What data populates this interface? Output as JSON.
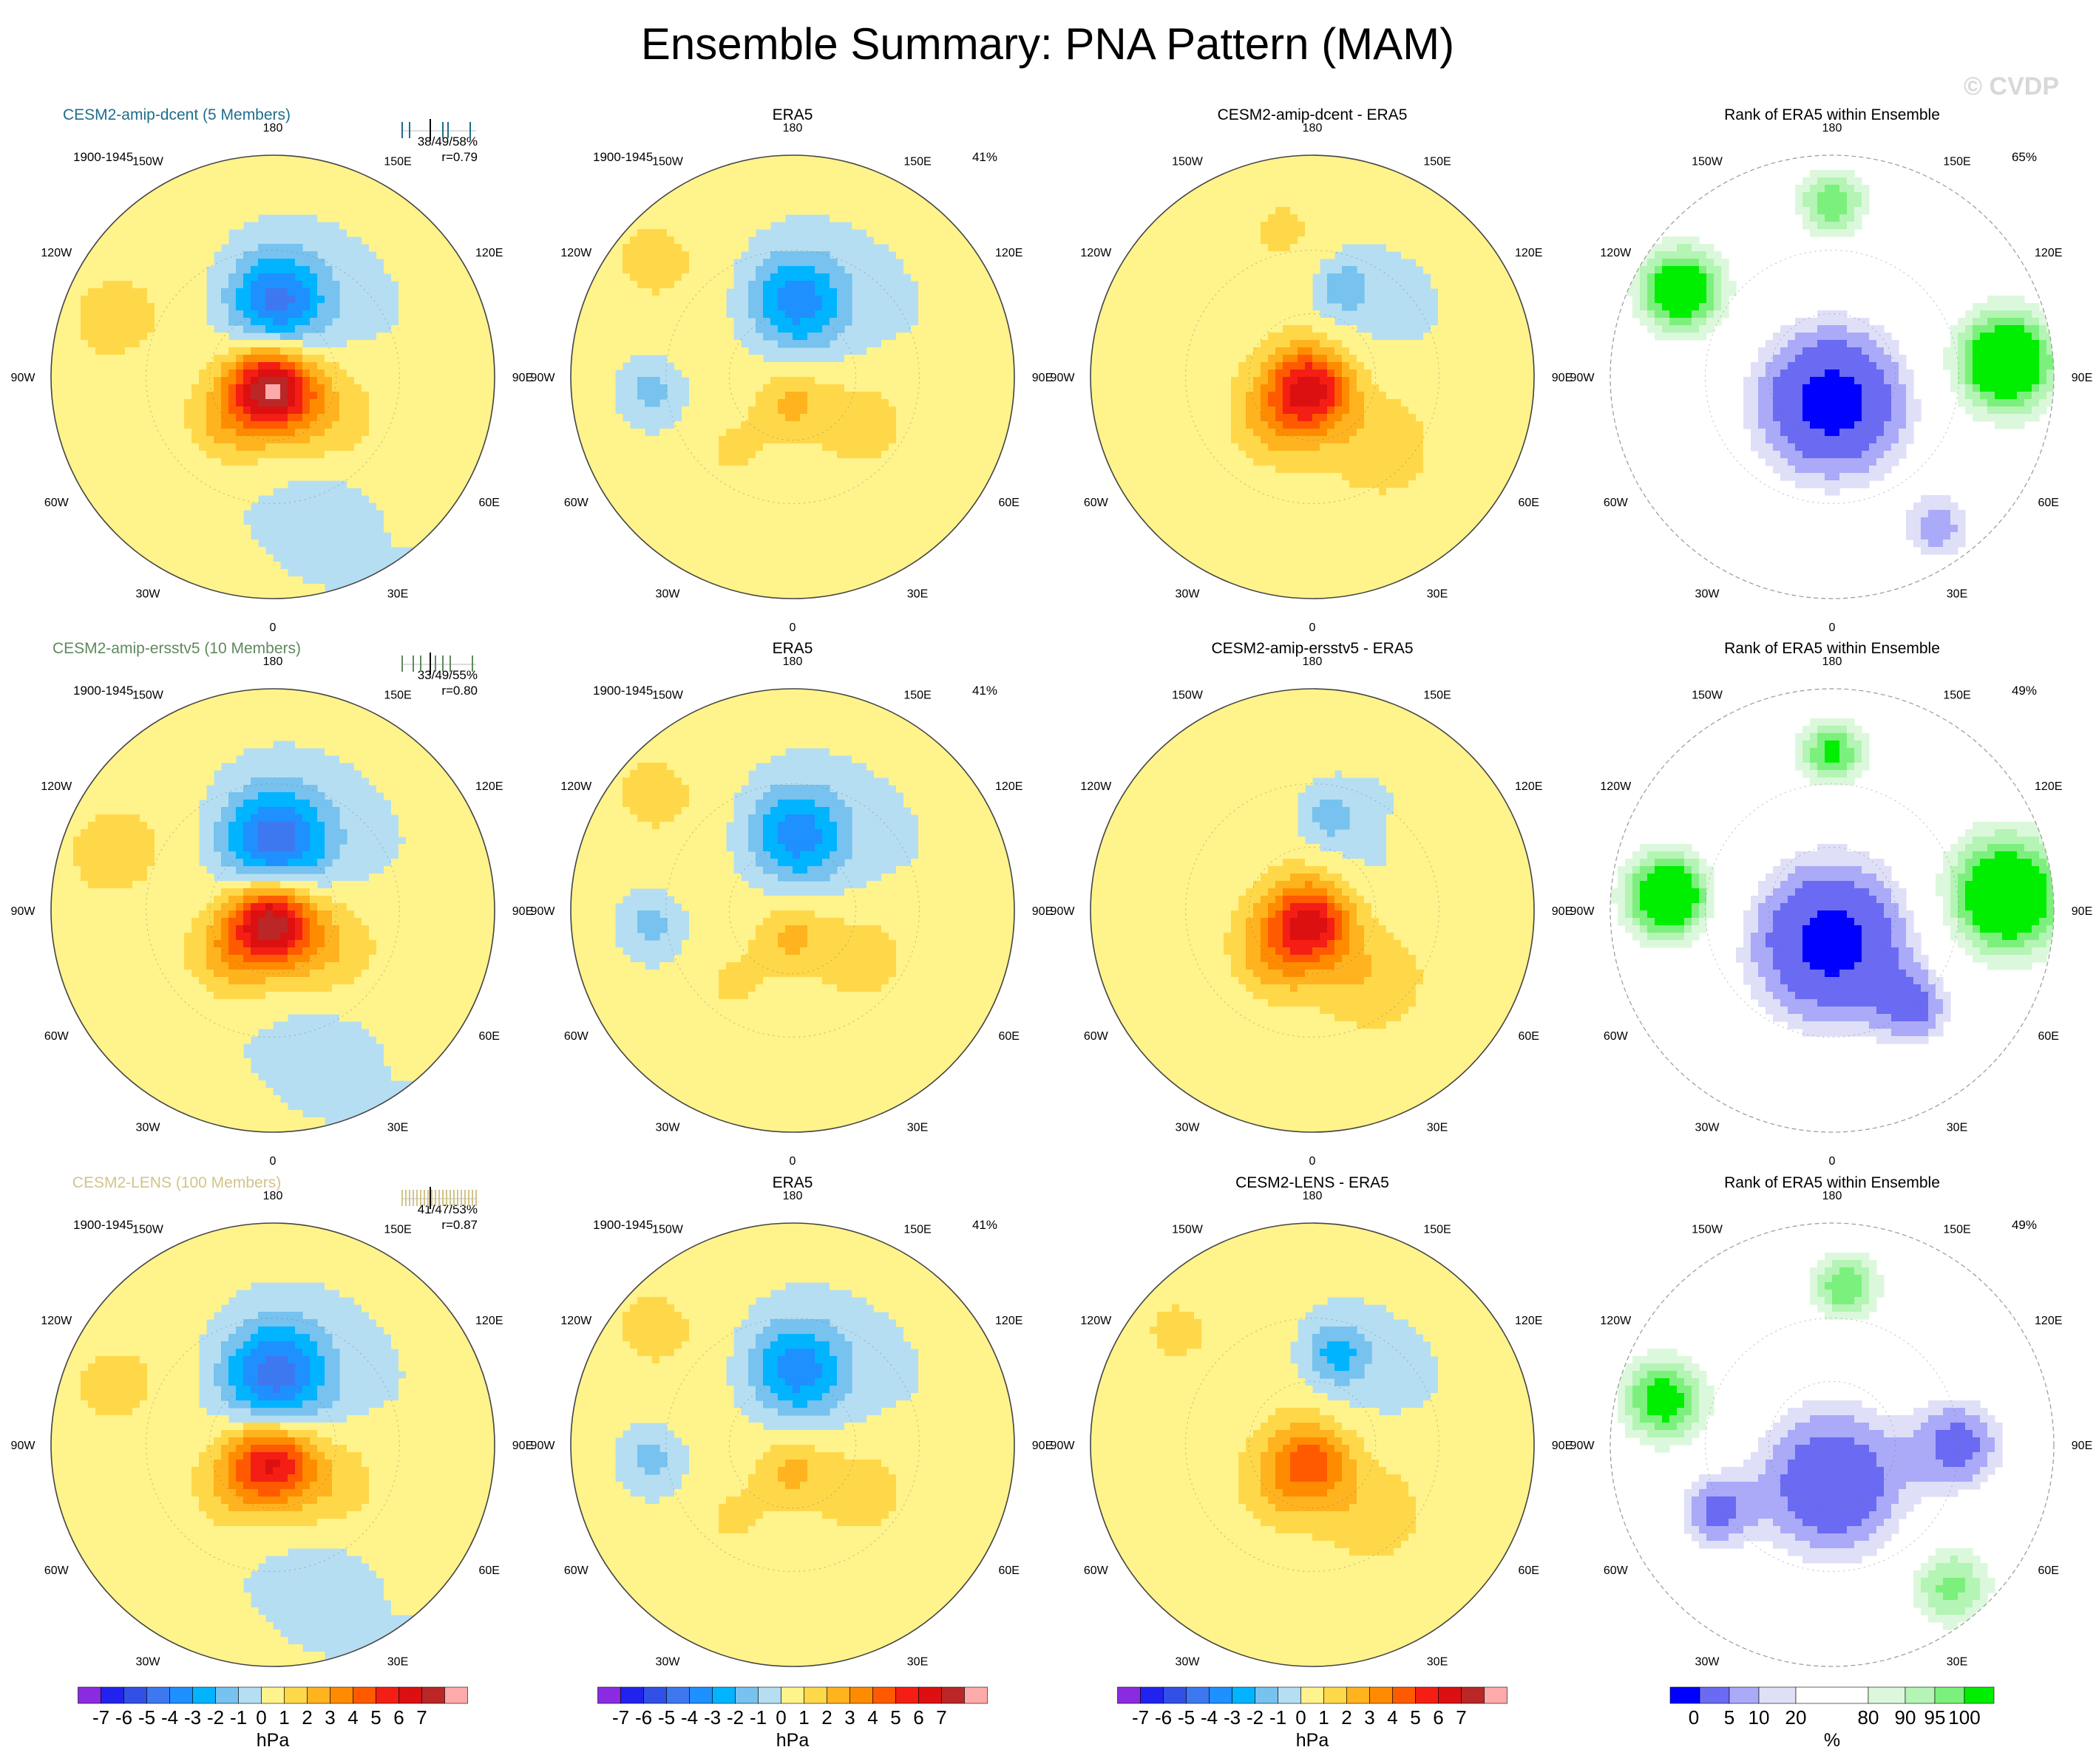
{
  "figure": {
    "title": "Ensemble Summary: PNA Pattern (MAM)",
    "watermark": "© CVDP"
  },
  "chart_data": {
    "type": "heatmap",
    "projection": "polar-stereographic (Northern Hemisphere)",
    "lon_labels": [
      "180",
      "150E",
      "120E",
      "90E",
      "60E",
      "30E",
      "0",
      "30W",
      "60W",
      "90W",
      "120W",
      "150W"
    ],
    "rows": [
      {
        "model": {
          "title": "CESM2-amip-dcent (5 Members)",
          "color": "#1f6e8c",
          "years": "1900-1945",
          "stats": "38/49/58%",
          "corr": "r=0.79",
          "ticks": [
            0.0,
            0.1,
            0.55,
            0.62,
            0.92
          ]
        },
        "obs": {
          "title": "ERA5",
          "years": "1900-1945",
          "pct": "41%"
        },
        "diff": {
          "title": "CESM2-amip-dcent - ERA5"
        },
        "rank": {
          "title": "Rank of ERA5 within Ensemble",
          "pct": "65%"
        },
        "fields": {
          "model": [
            {
              "lon": 178,
              "colat": 24,
              "a": -4.6,
              "s": 11
            },
            {
              "lon": 350,
              "colat": 3,
              "a": 7.2,
              "s": 9
            },
            {
              "lon": 315,
              "colat": 20,
              "a": 2.4,
              "s": 10
            },
            {
              "lon": 55,
              "colat": 18,
              "a": 1.5,
              "s": 12
            },
            {
              "lon": 20,
              "colat": 45,
              "a": -1.0,
              "s": 12
            },
            {
              "lon": 250,
              "colat": 55,
              "a": 1.2,
              "s": 12
            }
          ],
          "obs": [
            {
              "lon": 178,
              "colat": 24,
              "a": -3.8,
              "s": 11
            },
            {
              "lon": 350,
              "colat": 8,
              "a": 1.9,
              "s": 8
            },
            {
              "lon": 320,
              "colat": 30,
              "a": 1.3,
              "s": 10
            },
            {
              "lon": 60,
              "colat": 25,
              "a": 0.9,
              "s": 12
            },
            {
              "lon": 275,
              "colat": 45,
              "a": -1.6,
              "s": 6
            },
            {
              "lon": 230,
              "colat": 60,
              "a": 1.1,
              "s": 12
            }
          ],
          "diff": [
            {
              "lon": 350,
              "colat": 3,
              "a": 5.6,
              "s": 9
            },
            {
              "lon": 320,
              "colat": 18,
              "a": 2.6,
              "s": 11
            },
            {
              "lon": 45,
              "colat": 30,
              "a": 1.2,
              "s": 12
            },
            {
              "lon": 160,
              "colat": 30,
              "a": -1.8,
              "s": 6
            },
            {
              "lon": 190,
              "colat": 48,
              "a": 0.9,
              "s": 10
            }
          ],
          "rank": [
            {
              "lon": 0,
              "colat": 8,
              "a": -2.4,
              "s": 16
            },
            {
              "lon": 95,
              "colat": 55,
              "a": 2.2,
              "s": 12
            },
            {
              "lon": 240,
              "colat": 55,
              "a": 2.0,
              "s": 10
            },
            {
              "lon": 180,
              "colat": 55,
              "a": 1.4,
              "s": 8
            },
            {
              "lon": 35,
              "colat": 58,
              "a": -1.0,
              "s": 8
            }
          ]
        }
      },
      {
        "model": {
          "title": "CESM2-amip-ersstv5 (10 Members)",
          "color": "#5e8a5e",
          "years": "1900-1945",
          "stats": "33/49/55%",
          "corr": "r=0.80",
          "ticks": [
            0.0,
            0.15,
            0.25,
            0.45,
            0.55,
            0.65,
            0.95
          ]
        },
        "obs": {
          "title": "ERA5",
          "years": "1900-1945",
          "pct": "41%"
        },
        "diff": {
          "title": "CESM2-amip-ersstv5 - ERA5"
        },
        "rank": {
          "title": "Rank of ERA5 within Ensemble",
          "pct": "49%"
        },
        "fields": {
          "model": [
            {
              "lon": 180,
              "colat": 22,
              "a": -5.0,
              "s": 12
            },
            {
              "lon": 348,
              "colat": 3,
              "a": 6.8,
              "s": 9
            },
            {
              "lon": 315,
              "colat": 20,
              "a": 2.6,
              "s": 10
            },
            {
              "lon": 55,
              "colat": 18,
              "a": 1.6,
              "s": 12
            },
            {
              "lon": 20,
              "colat": 45,
              "a": -1.0,
              "s": 12
            },
            {
              "lon": 250,
              "colat": 55,
              "a": 1.3,
              "s": 12
            }
          ],
          "obs": [
            {
              "lon": 178,
              "colat": 24,
              "a": -3.8,
              "s": 11
            },
            {
              "lon": 350,
              "colat": 8,
              "a": 1.9,
              "s": 8
            },
            {
              "lon": 320,
              "colat": 30,
              "a": 1.3,
              "s": 10
            },
            {
              "lon": 60,
              "colat": 25,
              "a": 0.9,
              "s": 12
            },
            {
              "lon": 275,
              "colat": 45,
              "a": -1.6,
              "s": 6
            },
            {
              "lon": 230,
              "colat": 60,
              "a": 1.1,
              "s": 12
            }
          ],
          "diff": [
            {
              "lon": 350,
              "colat": 3,
              "a": 5.4,
              "s": 9
            },
            {
              "lon": 320,
              "colat": 18,
              "a": 2.8,
              "s": 11
            },
            {
              "lon": 40,
              "colat": 28,
              "a": 1.3,
              "s": 12
            },
            {
              "lon": 170,
              "colat": 30,
              "a": -1.6,
              "s": 6
            },
            {
              "lon": 120,
              "colat": 45,
              "a": 0.9,
              "s": 8
            }
          ],
          "rank": [
            {
              "lon": 0,
              "colat": 10,
              "a": -2.4,
              "s": 17
            },
            {
              "lon": 95,
              "colat": 55,
              "a": 2.2,
              "s": 14
            },
            {
              "lon": 265,
              "colat": 52,
              "a": 2.2,
              "s": 10
            },
            {
              "lon": 180,
              "colat": 50,
              "a": 1.5,
              "s": 8
            },
            {
              "lon": 40,
              "colat": 40,
              "a": -1.2,
              "s": 8
            }
          ]
        }
      },
      {
        "model": {
          "title": "CESM2-LENS (100 Members)",
          "color": "#d2c48a",
          "years": "1900-1945",
          "stats": "41/47/53%",
          "corr": "r=0.87",
          "ticks": [
            0.0,
            0.05,
            0.1,
            0.15,
            0.2,
            0.25,
            0.3,
            0.35,
            0.4,
            0.45,
            0.5,
            0.55,
            0.6,
            0.65,
            0.7,
            0.75,
            0.8,
            0.85,
            0.9,
            0.95,
            1.0
          ]
        },
        "obs": {
          "title": "ERA5",
          "years": "1900-1945",
          "pct": "41%"
        },
        "diff": {
          "title": "CESM2-LENS - ERA5"
        },
        "rank": {
          "title": "Rank of ERA5 within Ensemble",
          "pct": "49%"
        },
        "fields": {
          "model": [
            {
              "lon": 180,
              "colat": 22,
              "a": -4.8,
              "s": 12
            },
            {
              "lon": 348,
              "colat": 5,
              "a": 5.2,
              "s": 9
            },
            {
              "lon": 315,
              "colat": 20,
              "a": 1.9,
              "s": 10
            },
            {
              "lon": 55,
              "colat": 18,
              "a": 1.4,
              "s": 12
            },
            {
              "lon": 20,
              "colat": 45,
              "a": -1.0,
              "s": 12
            },
            {
              "lon": 250,
              "colat": 55,
              "a": 1.1,
              "s": 12
            }
          ],
          "obs": [
            {
              "lon": 178,
              "colat": 24,
              "a": -3.8,
              "s": 11
            },
            {
              "lon": 350,
              "colat": 8,
              "a": 1.9,
              "s": 8
            },
            {
              "lon": 320,
              "colat": 30,
              "a": 1.3,
              "s": 10
            },
            {
              "lon": 60,
              "colat": 25,
              "a": 0.9,
              "s": 12
            },
            {
              "lon": 275,
              "colat": 45,
              "a": -1.6,
              "s": 6
            },
            {
              "lon": 230,
              "colat": 60,
              "a": 1.1,
              "s": 12
            }
          ],
          "diff": [
            {
              "lon": 355,
              "colat": 5,
              "a": 3.6,
              "s": 9
            },
            {
              "lon": 320,
              "colat": 18,
              "a": 1.8,
              "s": 11
            },
            {
              "lon": 165,
              "colat": 30,
              "a": -2.6,
              "s": 7
            },
            {
              "lon": 40,
              "colat": 28,
              "a": 1.1,
              "s": 12
            },
            {
              "lon": 230,
              "colat": 58,
              "a": 1.0,
              "s": 10
            }
          ],
          "rank": [
            {
              "lon": 0,
              "colat": 12,
              "a": -1.9,
              "s": 16
            },
            {
              "lon": 90,
              "colat": 40,
              "a": -1.4,
              "s": 10
            },
            {
              "lon": 300,
              "colat": 42,
              "a": -1.3,
              "s": 8
            },
            {
              "lon": 255,
              "colat": 55,
              "a": 1.7,
              "s": 10
            },
            {
              "lon": 175,
              "colat": 50,
              "a": 1.4,
              "s": 8
            },
            {
              "lon": 40,
              "colat": 58,
              "a": 1.2,
              "s": 10
            }
          ]
        }
      }
    ],
    "colorbars": {
      "hPa": {
        "unit": "hPa",
        "labels": [
          "-7",
          "-6",
          "-5",
          "-4",
          "-3",
          "-2",
          "-1",
          "0",
          "1",
          "2",
          "3",
          "4",
          "5",
          "6",
          "7"
        ],
        "colors": [
          "#8a2be2",
          "#2222ee",
          "#3050e6",
          "#3e78f0",
          "#1e90ff",
          "#00b4ff",
          "#77c2ee",
          "#b5def2",
          "#fff38c",
          "#ffd84a",
          "#ffb31e",
          "#ff8c00",
          "#ff5a00",
          "#f41e14",
          "#dc1010",
          "#bb2626",
          "#ffaaaa"
        ]
      },
      "rank": {
        "unit": "%",
        "labels": [
          "0",
          "5",
          "10",
          "20",
          "80",
          "90",
          "95",
          "100"
        ],
        "colors": [
          "#0000ff",
          "#6a6af2",
          "#aaaaf8",
          "#dfdff8",
          "#ffffff",
          "#dcf8dc",
          "#b4f4b4",
          "#7cf07c",
          "#00ee00"
        ]
      }
    }
  }
}
